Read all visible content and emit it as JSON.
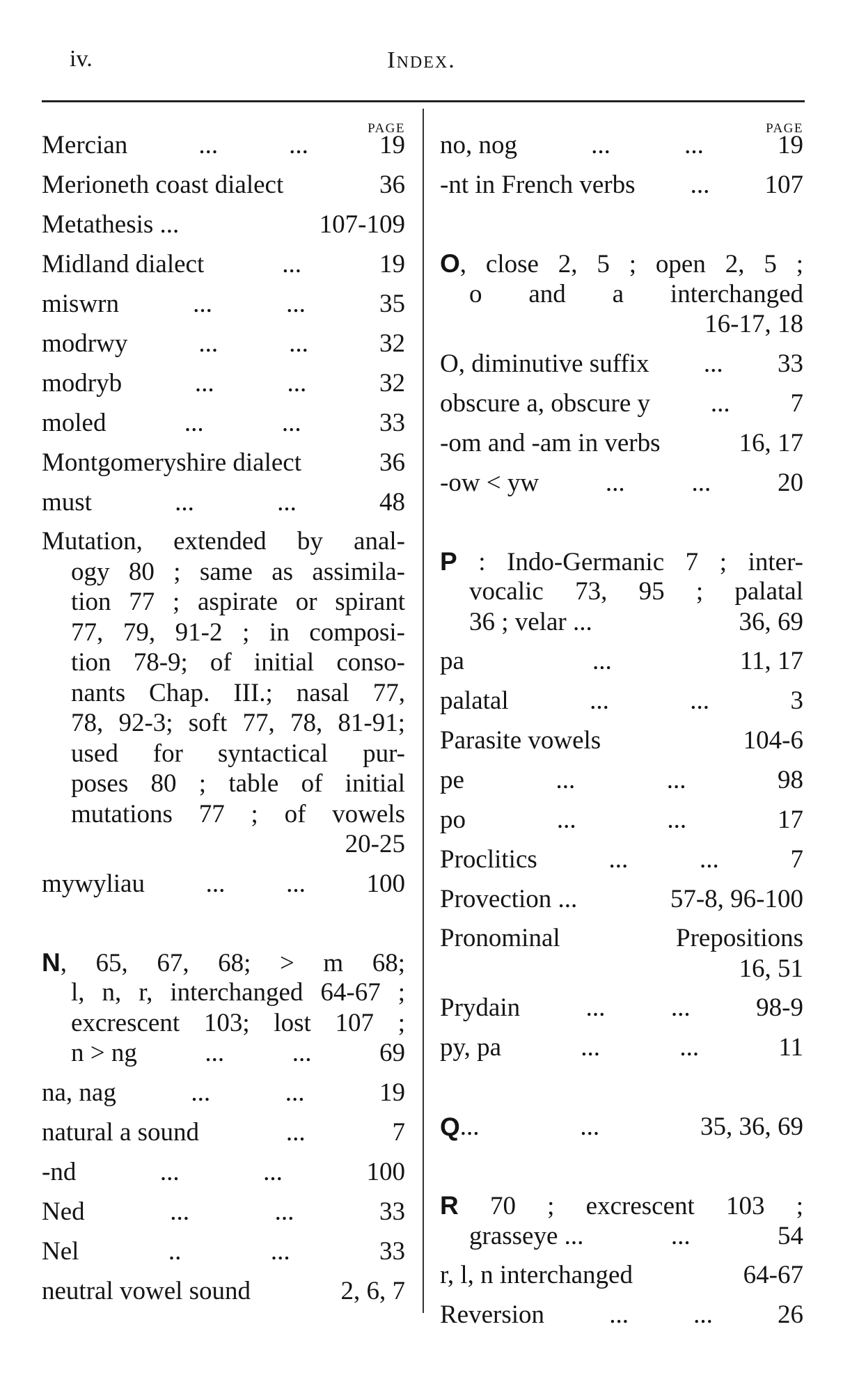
{
  "header": {
    "page_number": "iv.",
    "title": "Index."
  },
  "page_label": "PAGE",
  "left": [
    {
      "term": "Mercian",
      "dots": [
        "...",
        "..."
      ],
      "page": "19"
    },
    {
      "term": "Merioneth coast dialect",
      "dots": [],
      "page": "36"
    },
    {
      "term": "Metathesis ...",
      "dots": [],
      "page": "107-109"
    },
    {
      "term": "Midland dialect",
      "dots": [
        "..."
      ],
      "page": "19"
    },
    {
      "term": "miswrn",
      "dots": [
        "...",
        "..."
      ],
      "page": "35"
    },
    {
      "term": "modrwy",
      "dots": [
        "...",
        "..."
      ],
      "page": "32"
    },
    {
      "term": "modryb",
      "dots": [
        "...",
        "..."
      ],
      "page": "32"
    },
    {
      "term": "moled",
      "dots": [
        "...",
        "..."
      ],
      "page": "33"
    },
    {
      "term": "Montgomeryshire dialect",
      "dots": [],
      "page": "36"
    },
    {
      "term": "must",
      "dots": [
        "...",
        "..."
      ],
      "page": "48"
    },
    {
      "lines": [
        "Mutation, extended by anal-",
        "ogy 80 ; same as assimila-",
        "tion 77 ; aspirate or spirant",
        "77, 79, 91-2 ; in composi-",
        "tion 78-9; of initial conso-",
        "nants Chap. III.; nasal 77,",
        "78, 92-3; soft 77, 78, 81-91;",
        "used for syntactical pur-",
        "poses 80 ; table of initial",
        "mutations 77 ; of vowels"
      ],
      "last": {
        "page": "20-25"
      }
    },
    {
      "term": "mywyliau",
      "dots": [
        "...",
        "..."
      ],
      "page": "100"
    },
    {
      "gap": true
    },
    {
      "initial": "N",
      "lines": [
        ", 65, 67, 68; > m 68;",
        "l, n, r, interchanged 64-67 ;",
        "excrescent 103; lost 107 ;"
      ],
      "last": {
        "term": "n > ng",
        "dots": [
          "...",
          "..."
        ],
        "page": "69"
      }
    },
    {
      "term": "na, nag",
      "dots": [
        "...",
        "..."
      ],
      "page": "19"
    },
    {
      "term": "natural a sound",
      "dots": [
        "..."
      ],
      "page": "7"
    },
    {
      "term": "-nd",
      "dots": [
        "...",
        "..."
      ],
      "page": "100"
    },
    {
      "term": "Ned",
      "dots": [
        "...",
        "..."
      ],
      "page": "33"
    },
    {
      "term": "Nel",
      "dots": [
        "..",
        "..."
      ],
      "page": "33"
    },
    {
      "term": "neutral vowel sound",
      "dots": [],
      "page": "2, 6, 7"
    }
  ],
  "right": [
    {
      "term": "no, nog",
      "dots": [
        "...",
        "..."
      ],
      "page": "19"
    },
    {
      "term": "-nt in French verbs",
      "dots": [
        "..."
      ],
      "page": "107"
    },
    {
      "gap": true
    },
    {
      "initial": "O",
      "lines": [
        ", close 2, 5 ; open 2, 5 ;",
        "o and a interchanged"
      ],
      "last": {
        "page": "16-17, 18"
      }
    },
    {
      "term": "O, diminutive suffix",
      "dots": [
        "..."
      ],
      "page": "33"
    },
    {
      "term": "obscure a, obscure y",
      "dots": [
        "..."
      ],
      "page": "7"
    },
    {
      "term": "-om and -am in verbs",
      "dots": [],
      "page": "16, 17"
    },
    {
      "term": "-ow < yw",
      "dots": [
        "...",
        "..."
      ],
      "page": "20"
    },
    {
      "gap": true
    },
    {
      "initial": "P",
      "lines": [
        " : Indo-Germanic 7 ; inter-",
        "vocalic 73, 95 ; palatal"
      ],
      "last": {
        "term": "36 ; velar ...",
        "dots": [],
        "page": "36, 69"
      }
    },
    {
      "term": "pa",
      "dots": [
        "..."
      ],
      "page": "11, 17"
    },
    {
      "term": "palatal",
      "dots": [
        "...",
        "..."
      ],
      "page": "3"
    },
    {
      "term": "Parasite vowels",
      "dots": [],
      "page": "104-6"
    },
    {
      "term": "pe",
      "dots": [
        "...",
        "..."
      ],
      "page": "98"
    },
    {
      "term": "po",
      "dots": [
        "...",
        "..."
      ],
      "page": "17"
    },
    {
      "term": "Proclitics",
      "dots": [
        "...",
        "..."
      ],
      "page": "7"
    },
    {
      "term": "Provection ...",
      "dots": [],
      "page": "57-8, 96-100"
    },
    {
      "lines": [
        "Pronominal Prepositions"
      ],
      "noindent": true,
      "last": {
        "page": "16, 51"
      }
    },
    {
      "term": "Prydain",
      "dots": [
        "...",
        "..."
      ],
      "page": "98-9"
    },
    {
      "term": "py, pa",
      "dots": [
        "...",
        "..."
      ],
      "page": "11"
    },
    {
      "gap": true
    },
    {
      "initial": "Q",
      "term": "...",
      "dots": [
        "..."
      ],
      "page": "35, 36, 69"
    },
    {
      "gap": true
    },
    {
      "initial": "R",
      "lines": [
        " 70 ; excrescent 103 ;"
      ],
      "last": {
        "term": "grasseye ...",
        "dots": [
          "..."
        ],
        "page": "54"
      }
    },
    {
      "term": "r, l, n interchanged",
      "dots": [],
      "page": "64-67"
    },
    {
      "term": "Reversion",
      "dots": [
        "...",
        "..."
      ],
      "page": "26"
    }
  ]
}
